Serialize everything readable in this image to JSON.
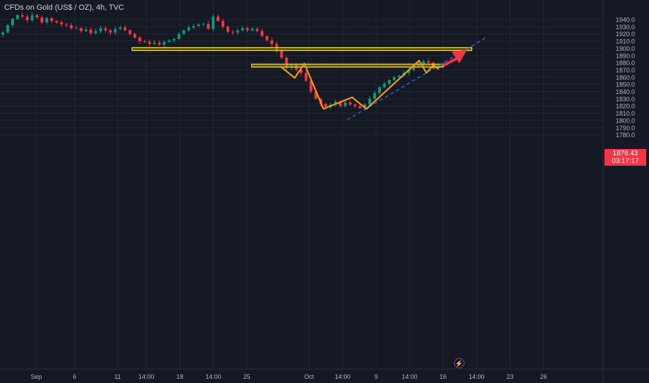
{
  "header": {
    "title": "CFDs on Gold (US$ / OZ), 4h, TVC"
  },
  "price_tag": {
    "price": "1876.43",
    "countdown": "03:17:17"
  },
  "colors": {
    "background": "#151924",
    "grid": "#222733",
    "axis_text": "#b2b5be",
    "up_candle": "#089981",
    "down_candle": "#f23645",
    "zone_fill": "#8b7d14",
    "zone_border": "#f5e04a",
    "pattern_line": "#f39c12",
    "trendline": "#3a6df0",
    "arrow": "#f23645",
    "price_tag_bg": "#f23645"
  },
  "icons": {
    "alert": "lightning-bolt-icon"
  },
  "chart_data": {
    "type": "candlestick",
    "title": "CFDs on Gold (US$ / OZ), 4h, TVC",
    "ylim": [
      1775,
      1950
    ],
    "y_ticks": [
      1780,
      1790,
      1800,
      1810,
      1820,
      1830,
      1840,
      1850,
      1860,
      1870,
      1880,
      1890,
      1900,
      1910,
      1920,
      1930,
      1940
    ],
    "x_ticks": [
      {
        "label": "Sep",
        "bar": 7
      },
      {
        "label": "6",
        "bar": 15
      },
      {
        "label": "11",
        "bar": 24
      },
      {
        "label": "14:00",
        "bar": 30
      },
      {
        "label": "18",
        "bar": 37
      },
      {
        "label": "14:00",
        "bar": 44
      },
      {
        "label": "25",
        "bar": 51
      },
      {
        "label": "Oct",
        "bar": 64
      },
      {
        "label": "14:00",
        "bar": 71
      },
      {
        "label": "9",
        "bar": 78
      },
      {
        "label": "14:00",
        "bar": 85
      },
      {
        "label": "16",
        "bar": 92
      },
      {
        "label": "14:00",
        "bar": 99
      },
      {
        "label": "23",
        "bar": 106
      },
      {
        "label": "26",
        "bar": 113
      }
    ],
    "bars_visible": 126,
    "close": [
      1922,
      1932,
      1941,
      1946,
      1944,
      1939,
      1946,
      1943,
      1936,
      1942,
      1938,
      1936,
      1933,
      1932,
      1928,
      1928,
      1924,
      1926,
      1921,
      1924,
      1928,
      1925,
      1922,
      1927,
      1929,
      1925,
      1920,
      1915,
      1910,
      1909,
      1906,
      1908,
      1905,
      1909,
      1911,
      1913,
      1920,
      1925,
      1929,
      1931,
      1933,
      1934,
      1927,
      1944,
      1938,
      1930,
      1923,
      1922,
      1925,
      1928,
      1925,
      1927,
      1924,
      1917,
      1911,
      1906,
      1897,
      1887,
      1873,
      1878,
      1870,
      1866,
      1855,
      1840,
      1830,
      1823,
      1819,
      1822,
      1826,
      1820,
      1825,
      1822,
      1820,
      1817,
      1822,
      1830,
      1838,
      1846,
      1851,
      1856,
      1860,
      1862,
      1866,
      1870,
      1874,
      1878,
      1882,
      1880,
      1872,
      1876,
      1876.43
    ],
    "current_price": 1876.43,
    "horizontal_zones": [
      {
        "from_bar": 27,
        "to_bar": 98,
        "low": 1897,
        "high": 1901
      },
      {
        "from_bar": 52,
        "to_bar": 92,
        "low": 1874,
        "high": 1878
      }
    ],
    "pattern_polyline": [
      {
        "bar": 58,
        "price": 1875
      },
      {
        "bar": 61,
        "price": 1859
      },
      {
        "bar": 63,
        "price": 1879
      },
      {
        "bar": 67,
        "price": 1816
      },
      {
        "bar": 73,
        "price": 1832
      },
      {
        "bar": 76,
        "price": 1816
      },
      {
        "bar": 87,
        "price": 1883
      },
      {
        "bar": 88.5,
        "price": 1866
      },
      {
        "bar": 90,
        "price": 1877
      },
      {
        "bar": 91,
        "price": 1871
      }
    ],
    "trendline": [
      {
        "bar": 72,
        "price": 1801
      },
      {
        "bar": 101,
        "price": 1915
      }
    ],
    "arrow": {
      "from": {
        "bar": 92,
        "price": 1876
      },
      "to": {
        "bar": 97,
        "price": 1898
      }
    }
  }
}
